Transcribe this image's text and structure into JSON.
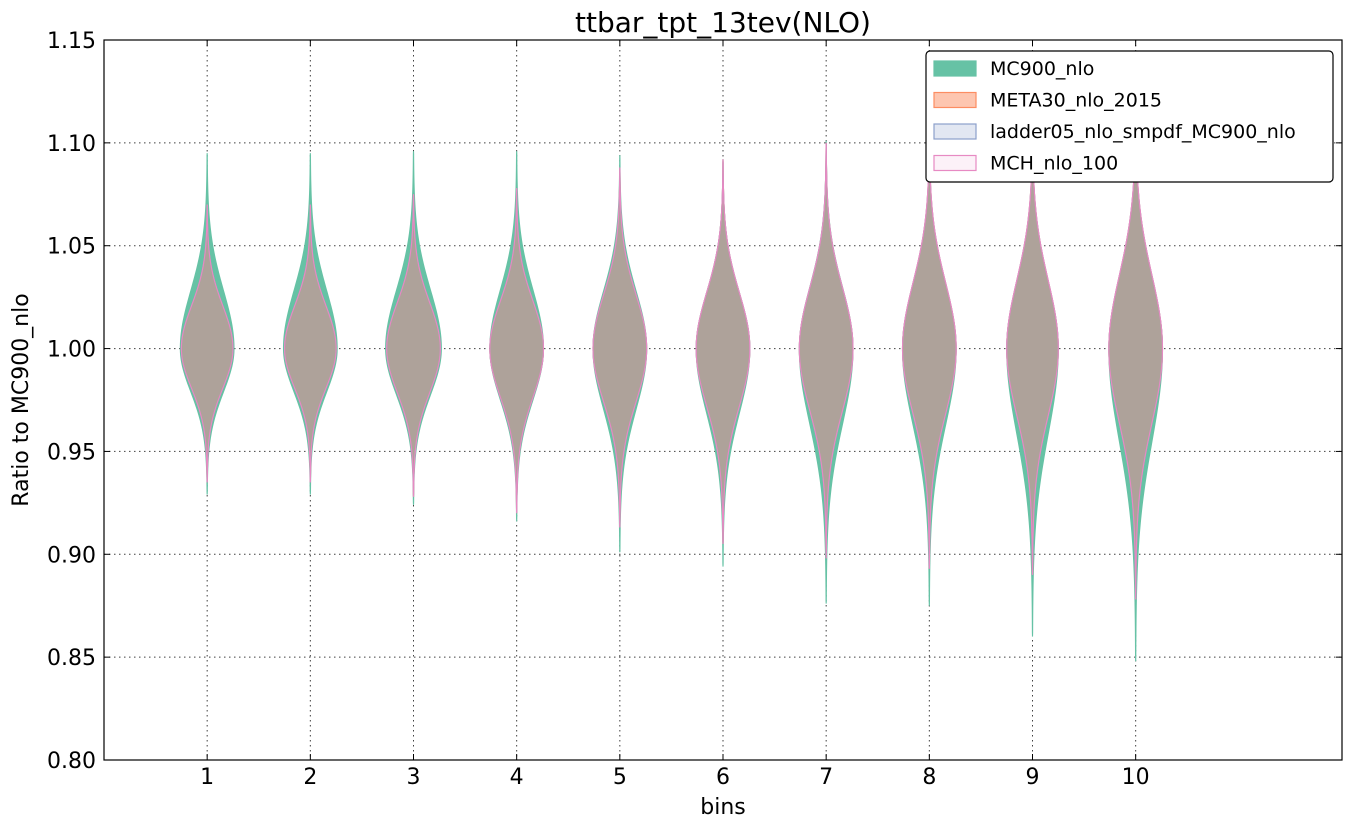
{
  "chart_data": {
    "type": "violin",
    "title": "ttbar_tpt_13tev(NLO)",
    "xlabel": "bins",
    "ylabel": "Ratio to MC900_nlo",
    "categories": [
      "1",
      "2",
      "3",
      "4",
      "5",
      "6",
      "7",
      "8",
      "9",
      "10"
    ],
    "x_positions": [
      1,
      2,
      3,
      4,
      5,
      6,
      7,
      8,
      9,
      10
    ],
    "xlim": [
      0,
      12
    ],
    "ylim": [
      0.8,
      1.15
    ],
    "yticks": [
      "0.80",
      "0.85",
      "0.90",
      "0.95",
      "1.00",
      "1.05",
      "1.10",
      "1.15"
    ],
    "grid": true,
    "legend_position": "top-right",
    "series": [
      {
        "name": "MC900_nlo",
        "color": "#66c2a5",
        "fill_opacity": 1.0,
        "min": [
          0.929,
          0.929,
          0.924,
          0.916,
          0.901,
          0.894,
          0.876,
          0.875,
          0.86,
          0.848
        ],
        "max": [
          1.095,
          1.095,
          1.096,
          1.096,
          1.094,
          1.092,
          1.101,
          1.105,
          1.11,
          1.117
        ],
        "half_width": [
          0.26,
          0.26,
          0.27,
          0.26,
          0.26,
          0.26,
          0.26,
          0.26,
          0.25,
          0.26
        ]
      },
      {
        "name": "META30_nlo_2015",
        "color": "#fc8d62",
        "fill_opacity": 0.5,
        "min": [
          0.935,
          0.935,
          0.928,
          0.92,
          0.913,
          0.905,
          0.898,
          0.893,
          0.89,
          0.878
        ],
        "max": [
          1.07,
          1.07,
          1.075,
          1.078,
          1.088,
          1.092,
          1.1,
          1.108,
          1.112,
          1.12
        ],
        "half_width": [
          0.25,
          0.25,
          0.26,
          0.26,
          0.26,
          0.26,
          0.26,
          0.26,
          0.25,
          0.26
        ]
      },
      {
        "name": "ladder05_nlo_smpdf_MC900_nlo",
        "color": "#8da0cb",
        "fill_opacity": 0.25,
        "min": [
          0.935,
          0.935,
          0.928,
          0.92,
          0.913,
          0.905,
          0.898,
          0.893,
          0.89,
          0.878
        ],
        "max": [
          1.07,
          1.07,
          1.075,
          1.078,
          1.088,
          1.092,
          1.1,
          1.108,
          1.112,
          1.12
        ],
        "half_width": [
          0.25,
          0.25,
          0.26,
          0.26,
          0.26,
          0.26,
          0.26,
          0.26,
          0.25,
          0.26
        ]
      },
      {
        "name": "MCH_nlo_100",
        "color": "#e78ac3",
        "fill_opacity": 0.12,
        "min": [
          0.935,
          0.935,
          0.928,
          0.92,
          0.913,
          0.905,
          0.898,
          0.893,
          0.89,
          0.878
        ],
        "max": [
          1.07,
          1.07,
          1.075,
          1.078,
          1.088,
          1.092,
          1.1,
          1.108,
          1.112,
          1.12
        ],
        "half_width": [
          0.25,
          0.25,
          0.26,
          0.26,
          0.26,
          0.26,
          0.26,
          0.26,
          0.25,
          0.26
        ]
      }
    ]
  }
}
